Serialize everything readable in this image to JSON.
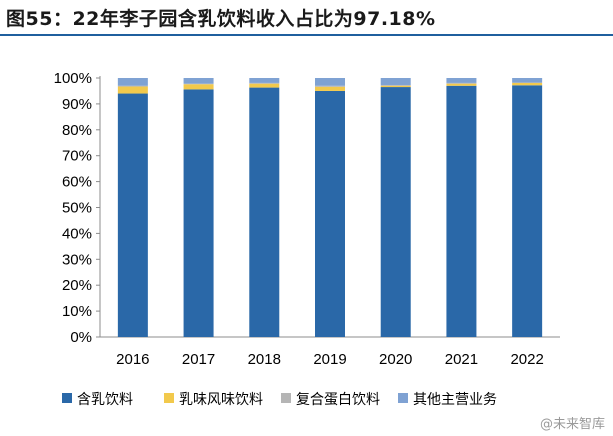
{
  "figure": {
    "title": "图55：22年李子园含乳饮料收入占比为97.18%",
    "watermark": "@未来智库"
  },
  "chart_data": {
    "type": "bar",
    "stacked": true,
    "categories": [
      "2016",
      "2017",
      "2018",
      "2019",
      "2020",
      "2021",
      "2022"
    ],
    "series": [
      {
        "name": "含乳饮料",
        "color": "#2A68A8",
        "values": [
          94.0,
          95.6,
          96.3,
          95.0,
          96.5,
          97.0,
          97.18
        ]
      },
      {
        "name": "乳味风味饮料",
        "color": "#F2C94C",
        "values": [
          2.7,
          2.0,
          1.5,
          1.6,
          0.5,
          0.8,
          0.9
        ]
      },
      {
        "name": "复合蛋白饮料",
        "color": "#B5B5B5",
        "values": [
          0.3,
          0.2,
          0.3,
          0.4,
          0.3,
          0.3,
          0.2
        ]
      },
      {
        "name": "其他主营业务",
        "color": "#7FA2D3",
        "values": [
          3.0,
          2.2,
          1.9,
          3.0,
          2.7,
          1.9,
          1.72
        ]
      }
    ],
    "y_ticks": [
      "0%",
      "10%",
      "20%",
      "30%",
      "40%",
      "50%",
      "60%",
      "70%",
      "80%",
      "90%",
      "100%"
    ],
    "ylim": [
      0,
      100
    ],
    "legend_position": "bottom",
    "grid": false
  }
}
